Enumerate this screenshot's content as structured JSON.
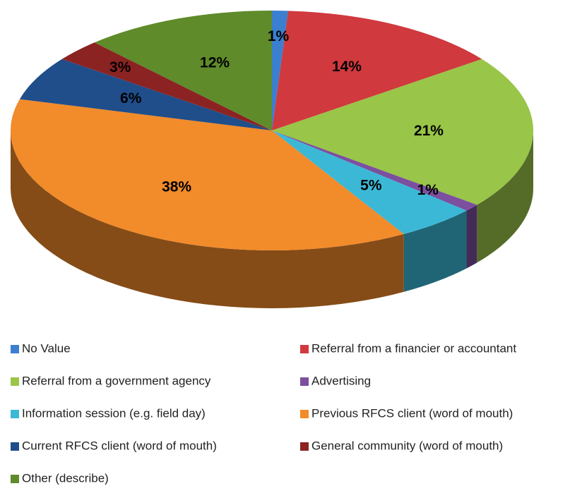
{
  "chart_data": {
    "type": "pie3d",
    "categories": [
      "No Value",
      "Referral from a financier or accountant",
      "Referral from a government agency",
      "Advertising",
      "Information session (e.g. field day)",
      "Previous RFCS client (word of mouth)",
      "Current RFCS client (word of mouth)",
      "General community (word of mouth)",
      "Other (describe)"
    ],
    "values": [
      1,
      14,
      21,
      1,
      5,
      38,
      6,
      3,
      12
    ],
    "value_labels": [
      "1%",
      "14%",
      "21%",
      "1%",
      "5%",
      "38%",
      "6%",
      "3%",
      "12%"
    ],
    "colors": [
      "#3a7fd0",
      "#d0393e",
      "#99c548",
      "#7c4f9f",
      "#3bb8d6",
      "#f28b2a",
      "#1f4e8a",
      "#8b2323",
      "#5f8b2a"
    ],
    "legend": "bottom"
  }
}
